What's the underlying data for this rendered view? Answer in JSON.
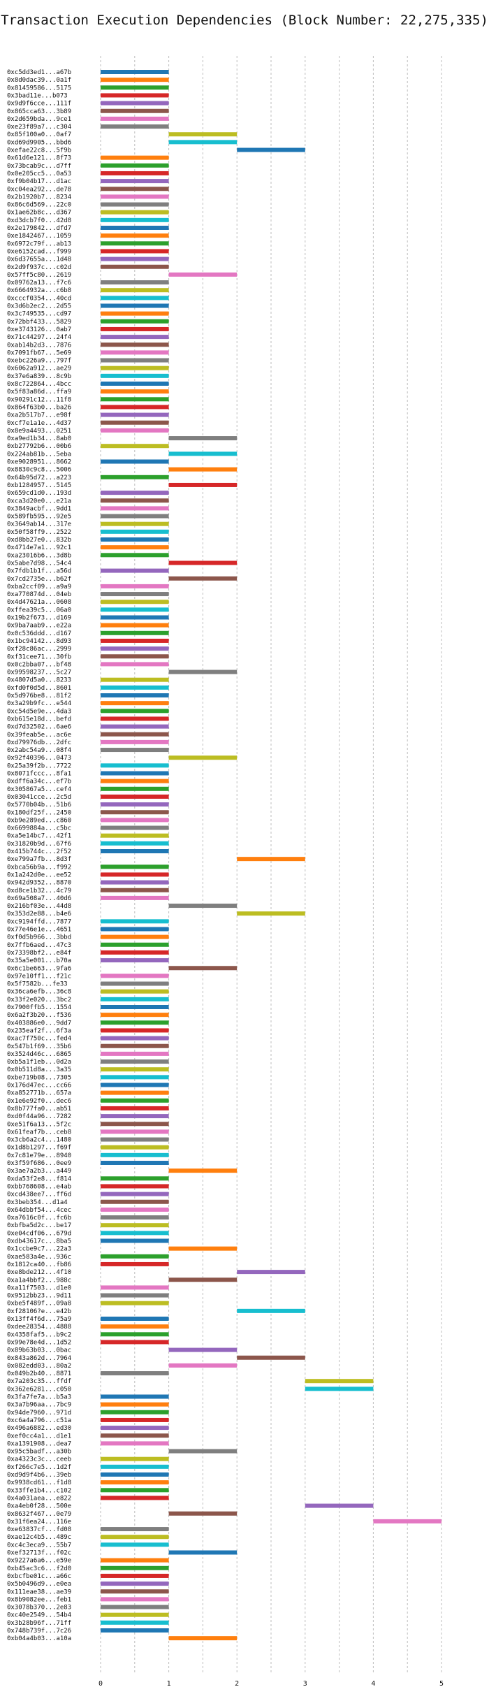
{
  "chart_data": {
    "type": "bar",
    "orientation": "horizontal",
    "title": "Transaction Execution Dependencies (Block Number: 22,275,335)",
    "xlabel": "",
    "ylabel": "",
    "xlim": [
      0,
      5.3
    ],
    "xticks": [
      0,
      1,
      2,
      3,
      4,
      5
    ],
    "grid": true,
    "colors": [
      "#1f77b4",
      "#ff7f0e",
      "#2ca02c",
      "#d62728",
      "#9467bd",
      "#8c564b",
      "#e377c2",
      "#7f7f7f",
      "#bcbd22",
      "#17becf"
    ],
    "transactions": [
      {
        "tx": "0xc5dd3ed1...a67b",
        "start": 0,
        "end": 1
      },
      {
        "tx": "0x8d0dac39...0a1f",
        "start": 0,
        "end": 1
      },
      {
        "tx": "0x81459586...5175",
        "start": 0,
        "end": 1
      },
      {
        "tx": "0x3bad11e...b073",
        "start": 0,
        "end": 1
      },
      {
        "tx": "0x9d9f6cce...111f",
        "start": 0,
        "end": 1
      },
      {
        "tx": "0x865cca63...3b89",
        "start": 0,
        "end": 1
      },
      {
        "tx": "0x2d659bda...9ce1",
        "start": 0,
        "end": 1
      },
      {
        "tx": "0xe23f89a7...c304",
        "start": 0,
        "end": 1
      },
      {
        "tx": "0x85f100a0...0af7",
        "start": 1,
        "end": 2
      },
      {
        "tx": "0xd69d9905...bbd6",
        "start": 1,
        "end": 2
      },
      {
        "tx": "0xefae22c8...5f9b",
        "start": 2,
        "end": 3
      },
      {
        "tx": "0x61d6e121...8f73",
        "start": 0,
        "end": 1
      },
      {
        "tx": "0x73bcab9c...d7ff",
        "start": 0,
        "end": 1
      },
      {
        "tx": "0x0e205cc5...0a53",
        "start": 0,
        "end": 1
      },
      {
        "tx": "0xf9b04b17...d1ac",
        "start": 0,
        "end": 1
      },
      {
        "tx": "0xc04ea292...de78",
        "start": 0,
        "end": 1
      },
      {
        "tx": "0x2b1920b7...8234",
        "start": 0,
        "end": 1
      },
      {
        "tx": "0x86c6d569...22c0",
        "start": 0,
        "end": 1
      },
      {
        "tx": "0x1ae62b8c...d367",
        "start": 0,
        "end": 1
      },
      {
        "tx": "0xd3dcb7f0...42d8",
        "start": 0,
        "end": 1
      },
      {
        "tx": "0x2e179842...dfd7",
        "start": 0,
        "end": 1
      },
      {
        "tx": "0xe1842467...1059",
        "start": 0,
        "end": 1
      },
      {
        "tx": "0x6972c79f...ab13",
        "start": 0,
        "end": 1
      },
      {
        "tx": "0xe6152cad...f999",
        "start": 0,
        "end": 1
      },
      {
        "tx": "0x6d37655a...1d48",
        "start": 0,
        "end": 1
      },
      {
        "tx": "0x2d9f937c...c02d",
        "start": 0,
        "end": 1
      },
      {
        "tx": "0x57ff5c80...2619",
        "start": 1,
        "end": 2
      },
      {
        "tx": "0x09762a13...f7c6",
        "start": 0,
        "end": 1
      },
      {
        "tx": "0x6664932a...c6b8",
        "start": 0,
        "end": 1
      },
      {
        "tx": "0xcccf0354...40cd",
        "start": 0,
        "end": 1
      },
      {
        "tx": "0x3d6b2ec2...2d55",
        "start": 0,
        "end": 1
      },
      {
        "tx": "0x3c749535...cd97",
        "start": 0,
        "end": 1
      },
      {
        "tx": "0x72bbf433...5829",
        "start": 0,
        "end": 1
      },
      {
        "tx": "0xe3743126...0ab7",
        "start": 0,
        "end": 1
      },
      {
        "tx": "0x71c44297...24f4",
        "start": 0,
        "end": 1
      },
      {
        "tx": "0xab14b2d3...7876",
        "start": 0,
        "end": 1
      },
      {
        "tx": "0x7091fb67...5e69",
        "start": 0,
        "end": 1
      },
      {
        "tx": "0xebc226a9...797f",
        "start": 0,
        "end": 1
      },
      {
        "tx": "0x6062a912...ae29",
        "start": 0,
        "end": 1
      },
      {
        "tx": "0x37e6a839...8c9b",
        "start": 0,
        "end": 1
      },
      {
        "tx": "0x8c722864...4bcc",
        "start": 0,
        "end": 1
      },
      {
        "tx": "0x5f83a86d...ffa9",
        "start": 0,
        "end": 1
      },
      {
        "tx": "0x90291c12...11f8",
        "start": 0,
        "end": 1
      },
      {
        "tx": "0x864f63b0...ba26",
        "start": 0,
        "end": 1
      },
      {
        "tx": "0xa2b517b7...e98f",
        "start": 0,
        "end": 1
      },
      {
        "tx": "0xcf7e1a1e...4d37",
        "start": 0,
        "end": 1
      },
      {
        "tx": "0x8e9a4493...0251",
        "start": 0,
        "end": 1
      },
      {
        "tx": "0xa9ed1b34...8ab0",
        "start": 1,
        "end": 2
      },
      {
        "tx": "0xb27792b6...00b6",
        "start": 0,
        "end": 1
      },
      {
        "tx": "0x224ab81b...5eba",
        "start": 1,
        "end": 2
      },
      {
        "tx": "0xe9028951...8662",
        "start": 0,
        "end": 1
      },
      {
        "tx": "0x8830c9c8...5006",
        "start": 1,
        "end": 2
      },
      {
        "tx": "0x64b95d72...a223",
        "start": 0,
        "end": 1
      },
      {
        "tx": "0xb1284957...5145",
        "start": 1,
        "end": 2
      },
      {
        "tx": "0x659cd1d0...193d",
        "start": 0,
        "end": 1
      },
      {
        "tx": "0xca3d20e0...e21a",
        "start": 0,
        "end": 1
      },
      {
        "tx": "0x3849acbf...9dd1",
        "start": 0,
        "end": 1
      },
      {
        "tx": "0x589fb595...92e5",
        "start": 0,
        "end": 1
      },
      {
        "tx": "0x3649ab14...317e",
        "start": 0,
        "end": 1
      },
      {
        "tx": "0x50f58ff9...2522",
        "start": 0,
        "end": 1
      },
      {
        "tx": "0xd8bb27e0...832b",
        "start": 0,
        "end": 1
      },
      {
        "tx": "0x4714e7a1...92c1",
        "start": 0,
        "end": 1
      },
      {
        "tx": "0xa23016b6...3d8b",
        "start": 0,
        "end": 1
      },
      {
        "tx": "0x5abe7d98...54c4",
        "start": 1,
        "end": 2
      },
      {
        "tx": "0x7fdb1b1f...a56d",
        "start": 0,
        "end": 1
      },
      {
        "tx": "0x7cd2735e...b62f",
        "start": 1,
        "end": 2
      },
      {
        "tx": "0xba2ccf09...a9a9",
        "start": 0,
        "end": 1
      },
      {
        "tx": "0xa770874d...04eb",
        "start": 0,
        "end": 1
      },
      {
        "tx": "0x4d47621a...0608",
        "start": 0,
        "end": 1
      },
      {
        "tx": "0xffea39c5...06a0",
        "start": 0,
        "end": 1
      },
      {
        "tx": "0x19b2f673...d169",
        "start": 0,
        "end": 1
      },
      {
        "tx": "0x9ba7aab9...e22a",
        "start": 0,
        "end": 1
      },
      {
        "tx": "0x0c536ddd...d167",
        "start": 0,
        "end": 1
      },
      {
        "tx": "0x1bc94142...8d93",
        "start": 0,
        "end": 1
      },
      {
        "tx": "0xf28c86ac...2999",
        "start": 0,
        "end": 1
      },
      {
        "tx": "0xf31cee71...30fb",
        "start": 0,
        "end": 1
      },
      {
        "tx": "0x0c2bba07...bf48",
        "start": 0,
        "end": 1
      },
      {
        "tx": "0x99598237...5c27",
        "start": 1,
        "end": 2
      },
      {
        "tx": "0x4807d5a0...8233",
        "start": 0,
        "end": 1
      },
      {
        "tx": "0xfd0f0d5d...8601",
        "start": 0,
        "end": 1
      },
      {
        "tx": "0x5d976be8...81f2",
        "start": 0,
        "end": 1
      },
      {
        "tx": "0x3a29b9fc...e544",
        "start": 0,
        "end": 1
      },
      {
        "tx": "0xc54d5e9e...4da3",
        "start": 0,
        "end": 1
      },
      {
        "tx": "0xb615e18d...befd",
        "start": 0,
        "end": 1
      },
      {
        "tx": "0xd7d32502...6ae6",
        "start": 0,
        "end": 1
      },
      {
        "tx": "0x39feab5e...ac6e",
        "start": 0,
        "end": 1
      },
      {
        "tx": "0xd79976db...2dfc",
        "start": 0,
        "end": 1
      },
      {
        "tx": "0x2abc54a9...08f4",
        "start": 0,
        "end": 1
      },
      {
        "tx": "0x92f40396...0473",
        "start": 1,
        "end": 2
      },
      {
        "tx": "0x25a39f2b...7722",
        "start": 0,
        "end": 1
      },
      {
        "tx": "0x8071fccc...8fa1",
        "start": 0,
        "end": 1
      },
      {
        "tx": "0xdff6a34c...ef7b",
        "start": 0,
        "end": 1
      },
      {
        "tx": "0x305867a5...cef4",
        "start": 0,
        "end": 1
      },
      {
        "tx": "0x03041cce...2c5d",
        "start": 0,
        "end": 1
      },
      {
        "tx": "0x5770b04b...51b6",
        "start": 0,
        "end": 1
      },
      {
        "tx": "0x180df25f...2450",
        "start": 0,
        "end": 1
      },
      {
        "tx": "0xb9e289ed...c860",
        "start": 0,
        "end": 1
      },
      {
        "tx": "0x6699884a...c5bc",
        "start": 0,
        "end": 1
      },
      {
        "tx": "0xa5e14bc7...42f1",
        "start": 0,
        "end": 1
      },
      {
        "tx": "0x31820b9d...67f6",
        "start": 0,
        "end": 1
      },
      {
        "tx": "0x415b744c...2f52",
        "start": 0,
        "end": 1
      },
      {
        "tx": "0xe799a7fb...8d3f",
        "start": 2,
        "end": 3
      },
      {
        "tx": "0xbca56b9a...f992",
        "start": 0,
        "end": 1
      },
      {
        "tx": "0x1a242d0e...ee52",
        "start": 0,
        "end": 1
      },
      {
        "tx": "0x942d9352...8870",
        "start": 0,
        "end": 1
      },
      {
        "tx": "0xd8ce1b32...4c79",
        "start": 0,
        "end": 1
      },
      {
        "tx": "0x69a508a7...40d6",
        "start": 0,
        "end": 1
      },
      {
        "tx": "0x216bf03e...44d8",
        "start": 1,
        "end": 2
      },
      {
        "tx": "0x353d2e88...b4e6",
        "start": 2,
        "end": 3
      },
      {
        "tx": "0xc9194ffd...7877",
        "start": 0,
        "end": 1
      },
      {
        "tx": "0x77e46e1e...4651",
        "start": 0,
        "end": 1
      },
      {
        "tx": "0xf0d5b966...3bbd",
        "start": 0,
        "end": 1
      },
      {
        "tx": "0x7ffb6aed...47c3",
        "start": 0,
        "end": 1
      },
      {
        "tx": "0x73398bf2...e84f",
        "start": 0,
        "end": 1
      },
      {
        "tx": "0x35a5e001...b70a",
        "start": 0,
        "end": 1
      },
      {
        "tx": "0x6c1be663...9fa6",
        "start": 1,
        "end": 2
      },
      {
        "tx": "0x97e10ff1...f21c",
        "start": 0,
        "end": 1
      },
      {
        "tx": "0x5f7582b...fe33",
        "start": 0,
        "end": 1
      },
      {
        "tx": "0x36ca6efb...36c8",
        "start": 0,
        "end": 1
      },
      {
        "tx": "0x33f2e020...3bc2",
        "start": 0,
        "end": 1
      },
      {
        "tx": "0x7900ffb5...1554",
        "start": 0,
        "end": 1
      },
      {
        "tx": "0x6a2f3b20...f536",
        "start": 0,
        "end": 1
      },
      {
        "tx": "0x403886e0...9dd7",
        "start": 0,
        "end": 1
      },
      {
        "tx": "0x235eaf2f...6f3a",
        "start": 0,
        "end": 1
      },
      {
        "tx": "0xac7f750c...fed4",
        "start": 0,
        "end": 1
      },
      {
        "tx": "0x547b1f69...35b6",
        "start": 0,
        "end": 1
      },
      {
        "tx": "0x3524d46c...6865",
        "start": 0,
        "end": 1
      },
      {
        "tx": "0xb5a1f1eb...0d2a",
        "start": 0,
        "end": 1
      },
      {
        "tx": "0x0b511d8a...3a35",
        "start": 0,
        "end": 1
      },
      {
        "tx": "0xbe719b08...7305",
        "start": 0,
        "end": 1
      },
      {
        "tx": "0x176d47ec...cc66",
        "start": 0,
        "end": 1
      },
      {
        "tx": "0xa852771b...657a",
        "start": 0,
        "end": 1
      },
      {
        "tx": "0x1e6e92f0...dec6",
        "start": 0,
        "end": 1
      },
      {
        "tx": "0x8b777fa0...ab51",
        "start": 0,
        "end": 1
      },
      {
        "tx": "0xd0f44a96...7282",
        "start": 0,
        "end": 1
      },
      {
        "tx": "0xe51f6a13...5f2c",
        "start": 0,
        "end": 1
      },
      {
        "tx": "0x61feaf7b...ceb8",
        "start": 0,
        "end": 1
      },
      {
        "tx": "0x3cb6a2c4...1480",
        "start": 0,
        "end": 1
      },
      {
        "tx": "0x1d8b1297...f69f",
        "start": 0,
        "end": 1
      },
      {
        "tx": "0x7c81e79e...8940",
        "start": 0,
        "end": 1
      },
      {
        "tx": "0x3f59f686...0ee9",
        "start": 0,
        "end": 1
      },
      {
        "tx": "0x3ae7a2b3...a449",
        "start": 1,
        "end": 2
      },
      {
        "tx": "0xda53f2e8...f814",
        "start": 0,
        "end": 1
      },
      {
        "tx": "0xbb768608...e4ab",
        "start": 0,
        "end": 1
      },
      {
        "tx": "0xcd438ee7...ff6d",
        "start": 0,
        "end": 1
      },
      {
        "tx": "0x3beb354...d1a4",
        "start": 0,
        "end": 1
      },
      {
        "tx": "0x64dbbf54...4cec",
        "start": 0,
        "end": 1
      },
      {
        "tx": "0xa7616c0f...fc6b",
        "start": 0,
        "end": 1
      },
      {
        "tx": "0xbfba5d2c...be17",
        "start": 0,
        "end": 1
      },
      {
        "tx": "0xe04cdf06...679d",
        "start": 0,
        "end": 1
      },
      {
        "tx": "0xdb43617c...8ba5",
        "start": 0,
        "end": 1
      },
      {
        "tx": "0x1ccbe9c7...22a3",
        "start": 1,
        "end": 2
      },
      {
        "tx": "0xae583a4e...936c",
        "start": 0,
        "end": 1
      },
      {
        "tx": "0x1812ca40...fb86",
        "start": 0,
        "end": 1
      },
      {
        "tx": "0xe8bde212...4f10",
        "start": 2,
        "end": 3
      },
      {
        "tx": "0xa1a4bbf2...988c",
        "start": 1,
        "end": 2
      },
      {
        "tx": "0xa11f7503...d1e0",
        "start": 0,
        "end": 1
      },
      {
        "tx": "0x9512bb23...9d11",
        "start": 0,
        "end": 1
      },
      {
        "tx": "0xbe5f489f...09a8",
        "start": 0,
        "end": 1
      },
      {
        "tx": "0xf28106?e...e42b",
        "start": 2,
        "end": 3
      },
      {
        "tx": "0x13ff4f6d...75a9",
        "start": 0,
        "end": 1
      },
      {
        "tx": "0xdee28354...4888",
        "start": 0,
        "end": 1
      },
      {
        "tx": "0x4358faf5...b9c2",
        "start": 0,
        "end": 1
      },
      {
        "tx": "0x99e78e4d...1d52",
        "start": 0,
        "end": 1
      },
      {
        "tx": "0x89b63b03...0bac",
        "start": 1,
        "end": 2
      },
      {
        "tx": "0x843a862d...7964",
        "start": 2,
        "end": 3
      },
      {
        "tx": "0x082edd03...80a2",
        "start": 1,
        "end": 2
      },
      {
        "tx": "0x049b2b40...8871",
        "start": 0,
        "end": 1
      },
      {
        "tx": "0x7a203c35...ffdf",
        "start": 3,
        "end": 4
      },
      {
        "tx": "0x362e6281...c050",
        "start": 3,
        "end": 4
      },
      {
        "tx": "0x3fa7fe7a...b5a3",
        "start": 0,
        "end": 1
      },
      {
        "tx": "0x3a7b96aa...7bc9",
        "start": 0,
        "end": 1
      },
      {
        "tx": "0x94de7960...971d",
        "start": 0,
        "end": 1
      },
      {
        "tx": "0xc6a4a796...c51a",
        "start": 0,
        "end": 1
      },
      {
        "tx": "0x496a6882...ed30",
        "start": 0,
        "end": 1
      },
      {
        "tx": "0xef0cc4a1...d1e1",
        "start": 0,
        "end": 1
      },
      {
        "tx": "0xa1391908...dea7",
        "start": 0,
        "end": 1
      },
      {
        "tx": "0x95c5badf...a30b",
        "start": 1,
        "end": 2
      },
      {
        "tx": "0xa4323c3c...ceeb",
        "start": 0,
        "end": 1
      },
      {
        "tx": "0xf266c7e5...1d2f",
        "start": 0,
        "end": 1
      },
      {
        "tx": "0xd9d9f4b6...39eb",
        "start": 0,
        "end": 1
      },
      {
        "tx": "0x9938cd61...f1d8",
        "start": 0,
        "end": 1
      },
      {
        "tx": "0x33ffe1b4...c102",
        "start": 0,
        "end": 1
      },
      {
        "tx": "0x4a031aea...e822",
        "start": 0,
        "end": 1
      },
      {
        "tx": "0xa4eb0f28...500e",
        "start": 3,
        "end": 4
      },
      {
        "tx": "0x8632f467...0e79",
        "start": 1,
        "end": 2
      },
      {
        "tx": "0x31f6ea24...116e",
        "start": 4,
        "end": 5
      },
      {
        "tx": "0xe63837cf...fd08",
        "start": 0,
        "end": 1
      },
      {
        "tx": "0xae12c4b5...489c",
        "start": 0,
        "end": 1
      },
      {
        "tx": "0xc4c3eca9...55b7",
        "start": 0,
        "end": 1
      },
      {
        "tx": "0xef32713f...f02c",
        "start": 1,
        "end": 2
      },
      {
        "tx": "0x9227a6a6...e59e",
        "start": 0,
        "end": 1
      },
      {
        "tx": "0xb45ac3c6...f2d0",
        "start": 0,
        "end": 1
      },
      {
        "tx": "0xbcfbe01c...a66c",
        "start": 0,
        "end": 1
      },
      {
        "tx": "0x5b0496d9...e0ea",
        "start": 0,
        "end": 1
      },
      {
        "tx": "0x111eae38...ae39",
        "start": 0,
        "end": 1
      },
      {
        "tx": "0x8b9082ee...feb1",
        "start": 0,
        "end": 1
      },
      {
        "tx": "0x3078b370...2e83",
        "start": 0,
        "end": 1
      },
      {
        "tx": "0xc40e2549...54b4",
        "start": 0,
        "end": 1
      },
      {
        "tx": "0x3b28b96f...71ff",
        "start": 0,
        "end": 1
      },
      {
        "tx": "0x748b739f...7c26",
        "start": 0,
        "end": 1
      },
      {
        "tx": "0xb04a4b03...a10a",
        "start": 1,
        "end": 2
      }
    ]
  }
}
